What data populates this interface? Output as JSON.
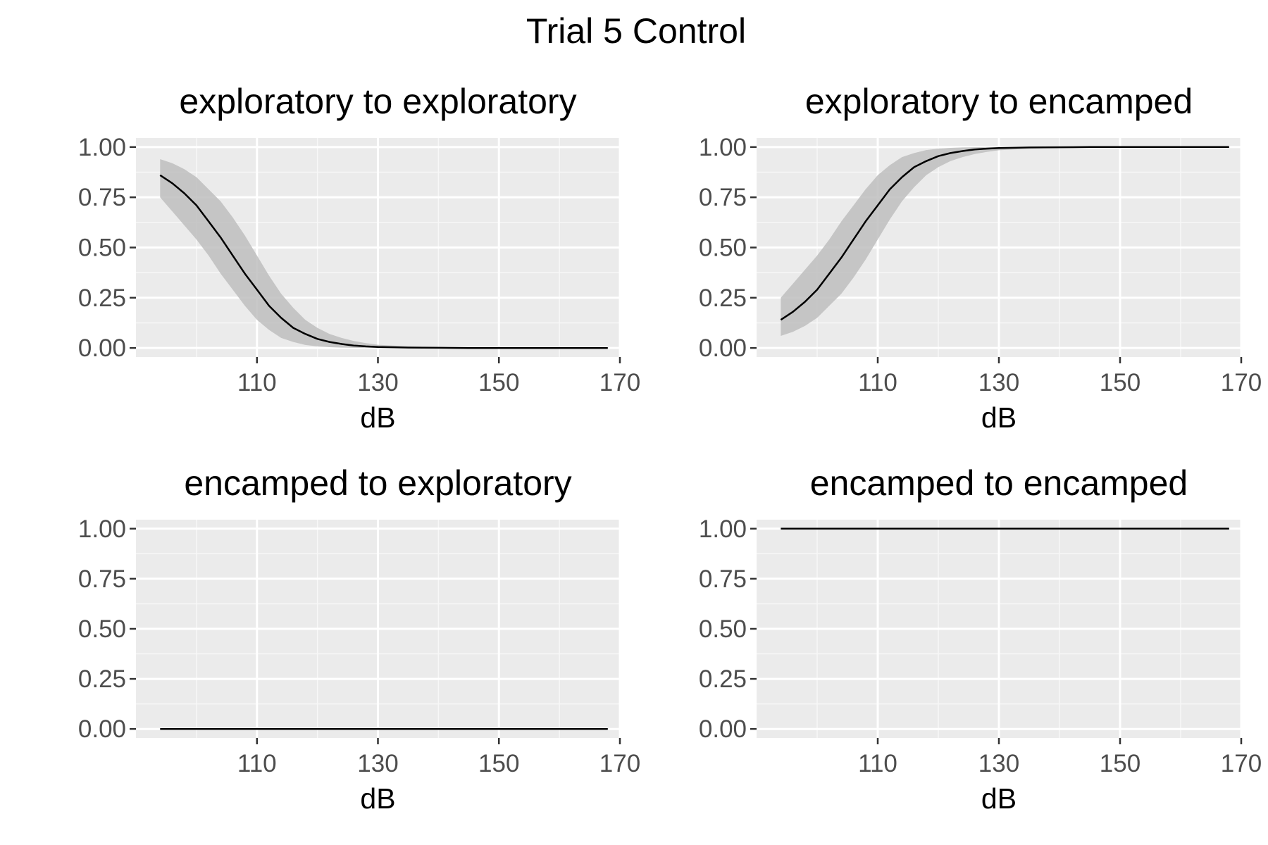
{
  "title": "Trial 5 Control",
  "chart_data": [
    {
      "type": "line",
      "title": "exploratory to exploratory",
      "xlabel": "dB",
      "ylabel": "",
      "xlim": [
        90,
        170
      ],
      "ylim": [
        0,
        1
      ],
      "x_ticks": [
        "110",
        "130",
        "150",
        "170"
      ],
      "y_ticks": [
        "0.00",
        "0.25",
        "0.50",
        "0.75",
        "1.00"
      ],
      "grid": true,
      "x": [
        94,
        96,
        98,
        100,
        102,
        104,
        106,
        108,
        110,
        112,
        114,
        116,
        118,
        120,
        122,
        124,
        126,
        128,
        130,
        135,
        140,
        145,
        150,
        155,
        160,
        165,
        168
      ],
      "series": [
        {
          "values": [
            0.86,
            0.82,
            0.77,
            0.71,
            0.63,
            0.55,
            0.46,
            0.37,
            0.29,
            0.21,
            0.15,
            0.1,
            0.07,
            0.045,
            0.03,
            0.02,
            0.012,
            0.008,
            0.005,
            0.002,
            0.001,
            0.0,
            0.0,
            0.0,
            0.0,
            0.0,
            0.0
          ],
          "lower": [
            0.75,
            0.68,
            0.61,
            0.54,
            0.46,
            0.37,
            0.29,
            0.21,
            0.14,
            0.09,
            0.05,
            0.03,
            0.015,
            0.008,
            0.004,
            0.002,
            0.001,
            0.0,
            0.0,
            0.0,
            0.0,
            0.0,
            0.0,
            0.0,
            0.0,
            0.0,
            0.0
          ],
          "upper": [
            0.94,
            0.92,
            0.89,
            0.85,
            0.79,
            0.73,
            0.65,
            0.56,
            0.46,
            0.36,
            0.27,
            0.2,
            0.14,
            0.1,
            0.07,
            0.05,
            0.035,
            0.024,
            0.016,
            0.008,
            0.004,
            0.002,
            0.001,
            0.0,
            0.0,
            0.0,
            0.0
          ]
        }
      ]
    },
    {
      "type": "line",
      "title": "exploratory to encamped",
      "xlabel": "dB",
      "ylabel": "",
      "xlim": [
        90,
        170
      ],
      "ylim": [
        0,
        1
      ],
      "x_ticks": [
        "110",
        "130",
        "150",
        "170"
      ],
      "y_ticks": [
        "0.00",
        "0.25",
        "0.50",
        "0.75",
        "1.00"
      ],
      "grid": true,
      "x": [
        94,
        96,
        98,
        100,
        102,
        104,
        106,
        108,
        110,
        112,
        114,
        116,
        118,
        120,
        122,
        124,
        126,
        128,
        130,
        135,
        140,
        145,
        150,
        155,
        160,
        165,
        168
      ],
      "series": [
        {
          "values": [
            0.14,
            0.18,
            0.23,
            0.29,
            0.37,
            0.45,
            0.54,
            0.63,
            0.71,
            0.79,
            0.85,
            0.9,
            0.93,
            0.955,
            0.97,
            0.98,
            0.988,
            0.992,
            0.995,
            0.998,
            0.999,
            1.0,
            1.0,
            1.0,
            1.0,
            1.0,
            1.0
          ],
          "lower": [
            0.06,
            0.08,
            0.11,
            0.15,
            0.21,
            0.27,
            0.35,
            0.44,
            0.54,
            0.64,
            0.73,
            0.8,
            0.86,
            0.9,
            0.93,
            0.95,
            0.965,
            0.976,
            0.984,
            0.992,
            0.996,
            0.998,
            0.999,
            1.0,
            1.0,
            1.0,
            1.0
          ],
          "upper": [
            0.25,
            0.32,
            0.39,
            0.46,
            0.54,
            0.63,
            0.71,
            0.79,
            0.86,
            0.91,
            0.95,
            0.97,
            0.985,
            0.992,
            0.996,
            0.998,
            0.999,
            1.0,
            1.0,
            1.0,
            1.0,
            1.0,
            1.0,
            1.0,
            1.0,
            1.0,
            1.0
          ]
        }
      ]
    },
    {
      "type": "line",
      "title": "encamped to exploratory",
      "xlabel": "dB",
      "ylabel": "",
      "xlim": [
        90,
        170
      ],
      "ylim": [
        0,
        1
      ],
      "x_ticks": [
        "110",
        "130",
        "150",
        "170"
      ],
      "y_ticks": [
        "0.00",
        "0.25",
        "0.50",
        "0.75",
        "1.00"
      ],
      "grid": true,
      "x": [
        94,
        168
      ],
      "series": [
        {
          "values": [
            0.0,
            0.0
          ],
          "lower": [
            0.0,
            0.0
          ],
          "upper": [
            0.0,
            0.0
          ]
        }
      ]
    },
    {
      "type": "line",
      "title": "encamped to encamped",
      "xlabel": "dB",
      "ylabel": "",
      "xlim": [
        90,
        170
      ],
      "ylim": [
        0,
        1
      ],
      "x_ticks": [
        "110",
        "130",
        "150",
        "170"
      ],
      "y_ticks": [
        "0.00",
        "0.25",
        "0.50",
        "0.75",
        "1.00"
      ],
      "grid": true,
      "x": [
        94,
        168
      ],
      "series": [
        {
          "values": [
            1.0,
            1.0
          ],
          "lower": [
            1.0,
            1.0
          ],
          "upper": [
            1.0,
            1.0
          ]
        }
      ]
    }
  ]
}
